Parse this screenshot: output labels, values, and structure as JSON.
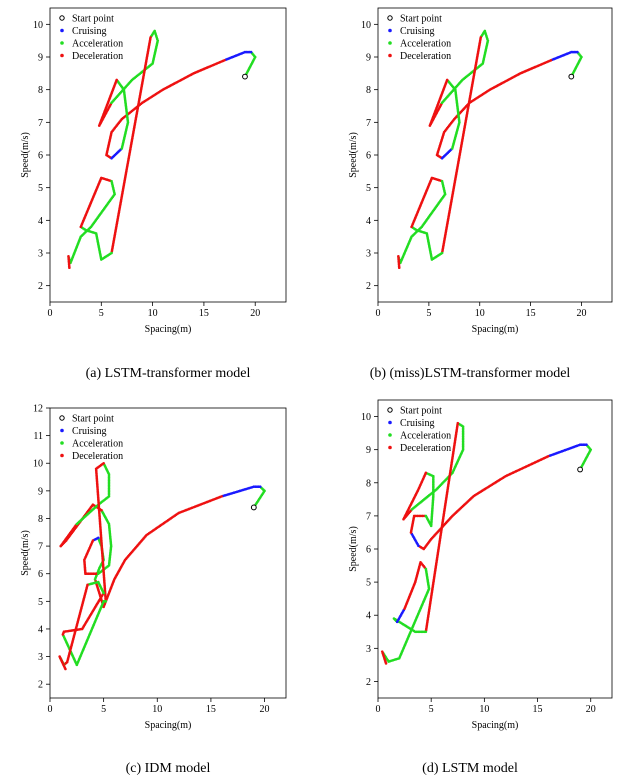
{
  "chart_data": [
    {
      "type": "scatter",
      "caption": "(a) LSTM-transformer model",
      "xlabel": "Spacing(m)",
      "ylabel": "Speed(m/s)",
      "xlim": [
        0,
        23
      ],
      "ylim": [
        1.5,
        10.5
      ],
      "xticks": [
        0,
        5,
        10,
        15,
        20
      ],
      "yticks": [
        2,
        3,
        4,
        5,
        6,
        7,
        8,
        9,
        10
      ],
      "legend": [
        "Start point",
        "Cruising",
        "Acceleration",
        "Deceleration"
      ],
      "start_point": [
        19.0,
        8.4
      ],
      "trajectory": [
        [
          19,
          8.4
        ],
        [
          19.5,
          8.7
        ],
        [
          20,
          9.0
        ],
        [
          19.6,
          9.15
        ],
        [
          19,
          9.15
        ],
        [
          17,
          8.9
        ],
        [
          14,
          8.5
        ],
        [
          11,
          8
        ],
        [
          9,
          7.6
        ],
        [
          7,
          7.1
        ],
        [
          6,
          6.7
        ],
        [
          5.5,
          6
        ],
        [
          6,
          5.9
        ],
        [
          7,
          6.2
        ],
        [
          7.6,
          7
        ],
        [
          7.2,
          8
        ],
        [
          6.5,
          8.3
        ],
        [
          4.8,
          6.9
        ],
        [
          6,
          7.6
        ],
        [
          8,
          8.3
        ],
        [
          10,
          8.8
        ],
        [
          10.5,
          9.5
        ],
        [
          10.2,
          9.8
        ],
        [
          9.8,
          9.6
        ],
        [
          6,
          3
        ],
        [
          5,
          2.8
        ],
        [
          4.5,
          3.6
        ],
        [
          3.5,
          3.7
        ],
        [
          3,
          3.8
        ],
        [
          5,
          5.3
        ],
        [
          6,
          5.2
        ],
        [
          6.3,
          4.8
        ],
        [
          4,
          3.8
        ],
        [
          3,
          3.5
        ],
        [
          2,
          2.7
        ],
        [
          1.8,
          2.9
        ],
        [
          1.9,
          2.5
        ]
      ],
      "phases": [
        "Acceleration",
        "Acceleration",
        "Acceleration",
        "Cruising",
        "Cruising",
        "Deceleration",
        "Deceleration",
        "Deceleration",
        "Deceleration",
        "Deceleration",
        "Deceleration",
        "Deceleration",
        "Cruising",
        "Acceleration",
        "Acceleration",
        "Acceleration",
        "Deceleration",
        "Deceleration",
        "Acceleration",
        "Acceleration",
        "Acceleration",
        "Acceleration",
        "Acceleration",
        "Deceleration",
        "Acceleration",
        "Acceleration",
        "Acceleration",
        "Acceleration",
        "Deceleration",
        "Deceleration",
        "Acceleration",
        "Acceleration",
        "Acceleration",
        "Acceleration",
        "Acceleration",
        "Deceleration",
        "Deceleration"
      ]
    },
    {
      "type": "scatter",
      "caption": "(b) (miss)LSTM-transformer model",
      "xlabel": "Spacing(m)",
      "ylabel": "Speed(m/s)",
      "xlim": [
        0,
        23
      ],
      "ylim": [
        1.5,
        10.5
      ],
      "xticks": [
        0,
        5,
        10,
        15,
        20
      ],
      "yticks": [
        2,
        3,
        4,
        5,
        6,
        7,
        8,
        9,
        10
      ],
      "legend": [
        "Start point",
        "Cruising",
        "Acceleration",
        "Deceleration"
      ],
      "start_point": [
        19.0,
        8.4
      ],
      "trajectory": [
        [
          19,
          8.4
        ],
        [
          19.5,
          8.7
        ],
        [
          20,
          9.0
        ],
        [
          19.6,
          9.15
        ],
        [
          19,
          9.15
        ],
        [
          17,
          8.9
        ],
        [
          14,
          8.5
        ],
        [
          11,
          8
        ],
        [
          9,
          7.6
        ],
        [
          7.5,
          7.1
        ],
        [
          6.5,
          6.7
        ],
        [
          5.8,
          6
        ],
        [
          6.3,
          5.9
        ],
        [
          7.3,
          6.2
        ],
        [
          8,
          7
        ],
        [
          7.6,
          8
        ],
        [
          6.8,
          8.3
        ],
        [
          5.1,
          6.9
        ],
        [
          6.3,
          7.6
        ],
        [
          8.3,
          8.3
        ],
        [
          10.3,
          8.8
        ],
        [
          10.8,
          9.5
        ],
        [
          10.5,
          9.8
        ],
        [
          10.1,
          9.6
        ],
        [
          6.3,
          3
        ],
        [
          5.3,
          2.8
        ],
        [
          4.8,
          3.6
        ],
        [
          3.8,
          3.7
        ],
        [
          3.3,
          3.8
        ],
        [
          5.3,
          5.3
        ],
        [
          6.3,
          5.2
        ],
        [
          6.6,
          4.8
        ],
        [
          4.3,
          3.8
        ],
        [
          3.3,
          3.5
        ],
        [
          2.2,
          2.7
        ],
        [
          2,
          2.9
        ],
        [
          2.1,
          2.5
        ]
      ],
      "phases": [
        "Acceleration",
        "Acceleration",
        "Acceleration",
        "Cruising",
        "Cruising",
        "Deceleration",
        "Deceleration",
        "Deceleration",
        "Deceleration",
        "Deceleration",
        "Deceleration",
        "Deceleration",
        "Cruising",
        "Acceleration",
        "Acceleration",
        "Acceleration",
        "Deceleration",
        "Deceleration",
        "Acceleration",
        "Acceleration",
        "Acceleration",
        "Acceleration",
        "Acceleration",
        "Deceleration",
        "Acceleration",
        "Acceleration",
        "Acceleration",
        "Acceleration",
        "Deceleration",
        "Deceleration",
        "Acceleration",
        "Acceleration",
        "Acceleration",
        "Acceleration",
        "Acceleration",
        "Deceleration",
        "Deceleration"
      ]
    },
    {
      "type": "scatter",
      "caption": "(c) IDM model",
      "xlabel": "Spacing(m)",
      "ylabel": "Speed(m/s)",
      "xlim": [
        0,
        22
      ],
      "ylim": [
        1.5,
        12
      ],
      "xticks": [
        0,
        5,
        10,
        15,
        20
      ],
      "yticks": [
        2,
        3,
        4,
        5,
        6,
        7,
        8,
        9,
        10,
        11,
        12
      ],
      "legend": [
        "Start point",
        "Cruising",
        "Acceleration",
        "Deceleration"
      ],
      "start_point": [
        19.0,
        8.4
      ],
      "trajectory": [
        [
          19,
          8.4
        ],
        [
          19.5,
          8.7
        ],
        [
          20,
          9.0
        ],
        [
          19.6,
          9.15
        ],
        [
          19,
          9.15
        ],
        [
          16,
          8.8
        ],
        [
          12,
          8.2
        ],
        [
          9,
          7.4
        ],
        [
          7,
          6.5
        ],
        [
          6,
          5.8
        ],
        [
          5,
          4.8
        ],
        [
          4.2,
          5.8
        ],
        [
          4.6,
          6.2
        ],
        [
          5,
          6.5
        ],
        [
          4.8,
          7
        ],
        [
          4.5,
          7.3
        ],
        [
          4,
          7.2
        ],
        [
          3.2,
          6.5
        ],
        [
          3.3,
          6.0
        ],
        [
          4.5,
          6
        ],
        [
          5.5,
          6.3
        ],
        [
          5.7,
          7
        ],
        [
          5.5,
          7.8
        ],
        [
          4.8,
          8.3
        ],
        [
          4,
          8.5
        ],
        [
          1.5,
          7.2
        ],
        [
          1.0,
          7.0
        ],
        [
          2.5,
          7.8
        ],
        [
          4.5,
          8.5
        ],
        [
          5.5,
          8.8
        ],
        [
          5.5,
          9.6
        ],
        [
          5.0,
          10
        ],
        [
          4.3,
          9.8
        ],
        [
          5.2,
          5
        ],
        [
          5.0,
          5
        ],
        [
          2.5,
          2.7
        ],
        [
          1.2,
          3.8
        ],
        [
          1.3,
          3.9
        ],
        [
          3,
          4
        ],
        [
          5,
          5.3
        ],
        [
          4.5,
          5.7
        ],
        [
          3.5,
          5.6
        ],
        [
          1.6,
          2.8
        ],
        [
          1.3,
          2.7
        ],
        [
          0.9,
          3
        ],
        [
          1.5,
          2.5
        ]
      ],
      "phases": [
        "Acceleration",
        "Acceleration",
        "Acceleration",
        "Cruising",
        "Cruising",
        "Deceleration",
        "Deceleration",
        "Deceleration",
        "Deceleration",
        "Deceleration",
        "Deceleration",
        "Acceleration",
        "Acceleration",
        "Acceleration",
        "Acceleration",
        "Cruising",
        "Deceleration",
        "Deceleration",
        "Deceleration",
        "Acceleration",
        "Acceleration",
        "Acceleration",
        "Acceleration",
        "Deceleration",
        "Deceleration",
        "Deceleration",
        "Deceleration",
        "Acceleration",
        "Acceleration",
        "Acceleration",
        "Acceleration",
        "Deceleration",
        "Deceleration",
        "Acceleration",
        "Acceleration",
        "Acceleration",
        "Deceleration",
        "Deceleration",
        "Deceleration",
        "Acceleration",
        "Acceleration",
        "Deceleration",
        "Deceleration",
        "Acceleration",
        "Deceleration",
        "Deceleration"
      ]
    },
    {
      "type": "scatter",
      "caption": "(d) LSTM model",
      "xlabel": "Spacing(m)",
      "ylabel": "Speed(m/s)",
      "xlim": [
        0,
        22
      ],
      "ylim": [
        1.5,
        10.5
      ],
      "xticks": [
        0,
        5,
        10,
        15,
        20
      ],
      "yticks": [
        2,
        3,
        4,
        5,
        6,
        7,
        8,
        9,
        10
      ],
      "legend": [
        "Start point",
        "Cruising",
        "Acceleration",
        "Deceleration"
      ],
      "start_point": [
        19.0,
        8.4
      ],
      "trajectory": [
        [
          19,
          8.4
        ],
        [
          19.5,
          8.7
        ],
        [
          20,
          9.0
        ],
        [
          19.6,
          9.15
        ],
        [
          19,
          9.15
        ],
        [
          16,
          8.8
        ],
        [
          12,
          8.2
        ],
        [
          9,
          7.6
        ],
        [
          7,
          7.0
        ],
        [
          5,
          6.3
        ],
        [
          4.3,
          6.0
        ],
        [
          3.8,
          6.1
        ],
        [
          3.1,
          6.5
        ],
        [
          3.4,
          7.0
        ],
        [
          4.5,
          7.0
        ],
        [
          5,
          6.7
        ],
        [
          5.2,
          7.6
        ],
        [
          5.2,
          8.2
        ],
        [
          4.5,
          8.3
        ],
        [
          3.8,
          7.8
        ],
        [
          2.4,
          6.9
        ],
        [
          3.2,
          7.2
        ],
        [
          5.5,
          7.8
        ],
        [
          7,
          8.3
        ],
        [
          8,
          9.0
        ],
        [
          8,
          9.7
        ],
        [
          7.5,
          9.8
        ],
        [
          4.5,
          3.5
        ],
        [
          3.5,
          3.5
        ],
        [
          1.5,
          3.9
        ],
        [
          1.8,
          3.8
        ],
        [
          2.5,
          4.2
        ],
        [
          3.5,
          5
        ],
        [
          4,
          5.6
        ],
        [
          4.5,
          5.4
        ],
        [
          4.8,
          4.8
        ],
        [
          2,
          2.7
        ],
        [
          1.0,
          2.6
        ],
        [
          0.4,
          2.9
        ],
        [
          0.8,
          2.5
        ]
      ],
      "phases": [
        "Acceleration",
        "Acceleration",
        "Acceleration",
        "Cruising",
        "Cruising",
        "Deceleration",
        "Deceleration",
        "Deceleration",
        "Deceleration",
        "Deceleration",
        "Deceleration",
        "Cruising",
        "Deceleration",
        "Deceleration",
        "Acceleration",
        "Acceleration",
        "Acceleration",
        "Acceleration",
        "Deceleration",
        "Deceleration",
        "Deceleration",
        "Acceleration",
        "Acceleration",
        "Acceleration",
        "Acceleration",
        "Acceleration",
        "Deceleration",
        "Acceleration",
        "Acceleration",
        "Acceleration",
        "Cruising",
        "Deceleration",
        "Deceleration",
        "Deceleration",
        "Acceleration",
        "Acceleration",
        "Acceleration",
        "Acceleration",
        "Deceleration",
        "Deceleration"
      ]
    }
  ],
  "colors": {
    "Cruising": "#1a1aff",
    "Acceleration": "#22dd22",
    "Deceleration": "#ee1111",
    "start": "#000000"
  }
}
